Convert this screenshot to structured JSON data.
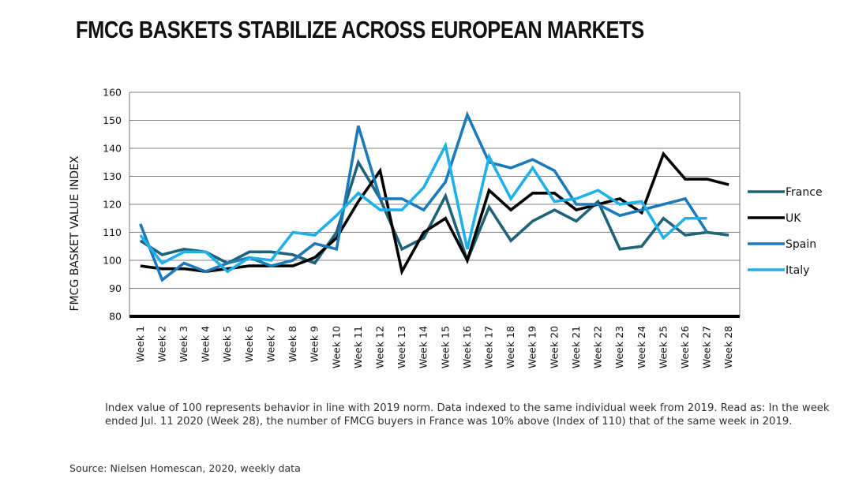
{
  "title": "FMCG BASKETS STABILIZE ACROSS EUROPEAN MARKETS",
  "note": "Index value of 100 represents behavior in line with 2019 norm. Data indexed to the same individual week from 2019. Read as: In the week ended Jul. 11 2020 (Week 28), the number of FMCG buyers in France was 10% above (Index of 110) that of the same week in 2019.",
  "source": "Source: Nielsen Homescan, 2020, weekly data",
  "chart_data": {
    "type": "line",
    "title": "FMCG BASKETS STABILIZE ACROSS EUROPEAN MARKETS",
    "xlabel": "",
    "ylabel": "FMCG BASKET VALUE INDEX",
    "ylim": [
      80,
      160
    ],
    "yticks": [
      80,
      90,
      100,
      110,
      120,
      130,
      140,
      150,
      160
    ],
    "grid": true,
    "legend_position": "right",
    "categories": [
      "Week 1",
      "Week 2",
      "Week 3",
      "Week 4",
      "Week 5",
      "Week 6",
      "Week 7",
      "Week 8",
      "Week 9",
      "Week 10",
      "Week 11",
      "Week 12",
      "Week 13",
      "Week 14",
      "Week 15",
      "Week 16",
      "Week 17",
      "Week 18",
      "Week 19",
      "Week 20",
      "Week 21",
      "Week 22",
      "Week 23",
      "Week 24",
      "Week 25",
      "Week 26",
      "Week 27",
      "Week 28"
    ],
    "series": [
      {
        "name": "France",
        "color": "#1f6378",
        "values": [
          107,
          102,
          104,
          103,
          99,
          103,
          103,
          102,
          99,
          110,
          135,
          122,
          104,
          108,
          123,
          100,
          119,
          107,
          114,
          118,
          114,
          121,
          104,
          105,
          115,
          109,
          110,
          109
        ]
      },
      {
        "name": "UK",
        "color": "#000000",
        "values": [
          98,
          97,
          97,
          96,
          97,
          98,
          98,
          98,
          101,
          108,
          121,
          132,
          96,
          110,
          115,
          100,
          125,
          118,
          124,
          124,
          118,
          120,
          122,
          117,
          138,
          129,
          129,
          127
        ]
      },
      {
        "name": "Spain",
        "color": "#1b7bba",
        "values": [
          113,
          93,
          99,
          96,
          99,
          101,
          98,
          100,
          106,
          104,
          148,
          122,
          122,
          118,
          128,
          152,
          135,
          133,
          136,
          132,
          120,
          120,
          116,
          118,
          120,
          122,
          110,
          null
        ]
      },
      {
        "name": "Italy",
        "color": "#1fb0e8",
        "values": [
          109,
          99,
          103,
          103,
          96,
          101,
          100,
          110,
          109,
          116,
          124,
          118,
          118,
          126,
          141,
          104,
          137,
          122,
          133,
          121,
          122,
          125,
          120,
          121,
          108,
          115,
          115,
          null
        ]
      }
    ]
  }
}
